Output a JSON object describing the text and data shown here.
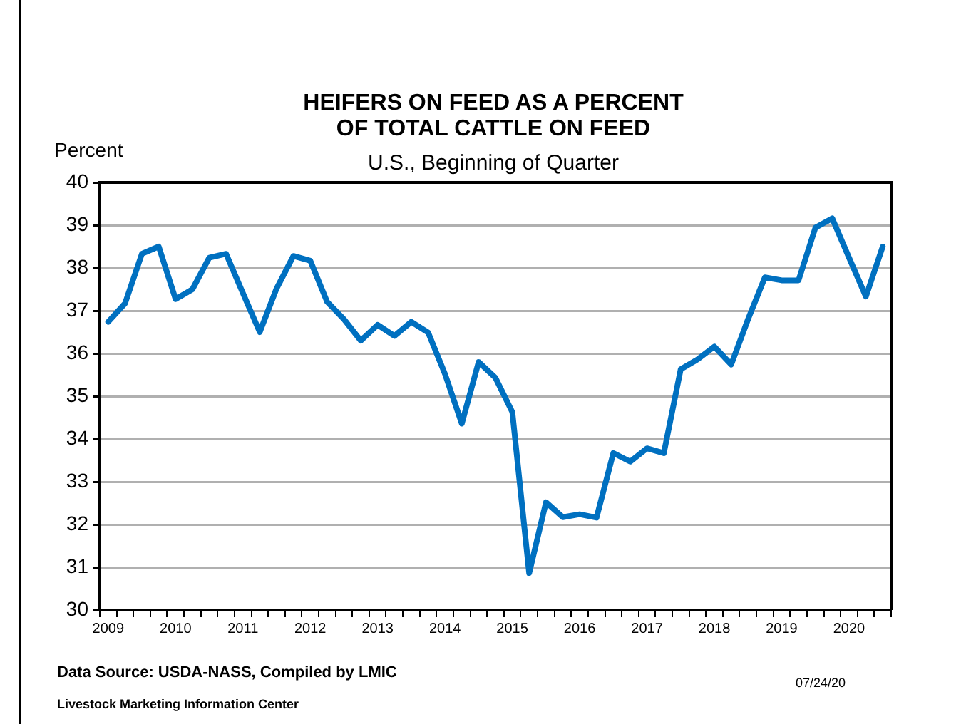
{
  "chart_data": {
    "type": "line",
    "title": "HEIFERS ON FEED AS A PERCENT\nOF TOTAL CATTLE ON FEED",
    "subtitle": "U.S., Beginning of Quarter",
    "ylabel": "Percent",
    "categories": [
      "2009",
      null,
      null,
      null,
      "2010",
      null,
      null,
      null,
      "2011",
      null,
      null,
      null,
      "2012",
      null,
      null,
      null,
      "2013",
      null,
      null,
      null,
      "2014",
      null,
      null,
      null,
      "2015",
      null,
      null,
      null,
      "2016",
      null,
      null,
      null,
      "2017",
      null,
      null,
      null,
      "2018",
      null,
      null,
      null,
      "2019",
      null,
      null,
      null,
      "2020",
      null,
      null
    ],
    "series": [
      {
        "color": "#0070c0",
        "values": [
          36.74,
          37.17,
          38.33,
          38.5,
          37.27,
          37.5,
          38.24,
          38.33,
          37.41,
          36.5,
          37.52,
          38.28,
          38.17,
          37.21,
          36.8,
          36.3,
          36.67,
          36.41,
          36.74,
          36.49,
          35.52,
          34.36,
          35.8,
          35.43,
          34.63,
          30.86,
          32.52,
          32.17,
          32.24,
          32.16,
          33.67,
          33.47,
          33.78,
          33.67,
          35.63,
          35.86,
          36.16,
          35.74,
          36.8,
          37.78,
          37.71,
          37.71,
          38.94,
          39.16,
          38.24,
          37.33,
          38.5
        ]
      }
    ],
    "ylim": [
      30,
      40
    ],
    "yticks": [
      30,
      31,
      32,
      33,
      34,
      35,
      36,
      37,
      38,
      39,
      40
    ],
    "grid": "y",
    "legend": false,
    "marker": "none",
    "line_style": "solid",
    "annotations": [
      "Data Source:  USDA-NASS, Compiled  by LMIC",
      "07/24/20",
      "Livestock Marketing Information Center"
    ]
  }
}
